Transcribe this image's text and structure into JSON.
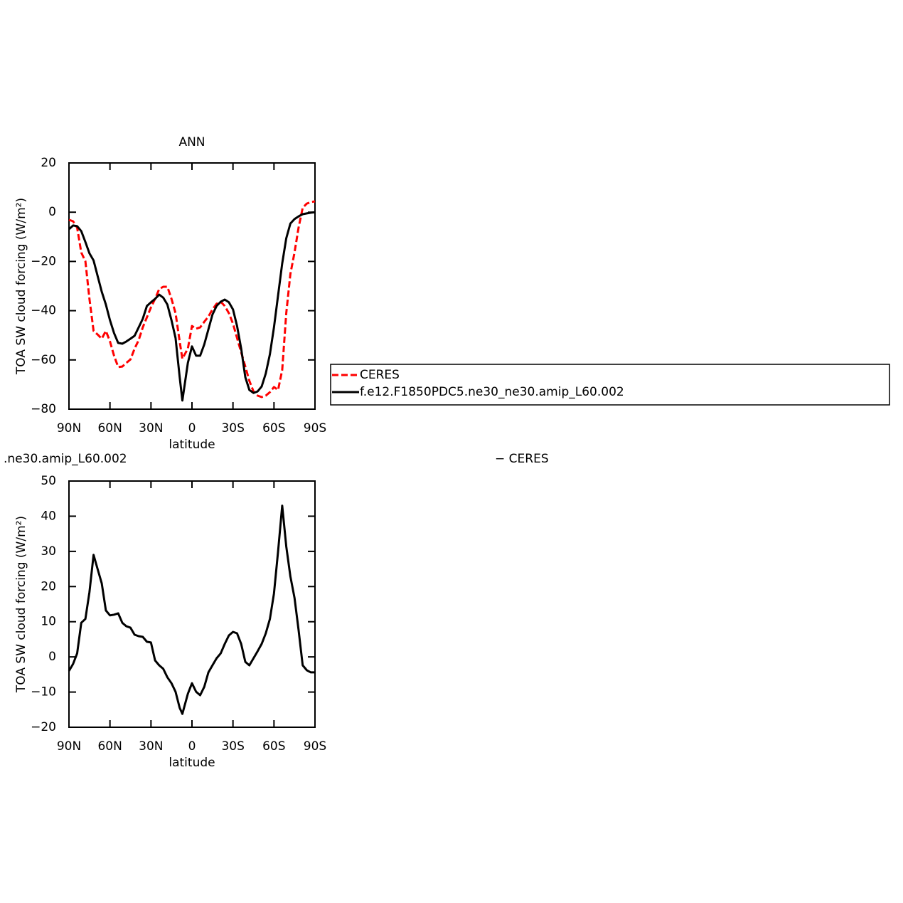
{
  "chart_data": [
    {
      "type": "line",
      "title": "ANN",
      "xlabel": "latitude",
      "ylabel": "TOA SW cloud forcing (W/m²)",
      "x": [
        90,
        87,
        84,
        81,
        78,
        75,
        72,
        69,
        66,
        63,
        60,
        57,
        54,
        51,
        48,
        45,
        42,
        39,
        36,
        33,
        30,
        27,
        24,
        21,
        18,
        15,
        12,
        9,
        7,
        3,
        0,
        -3,
        -6,
        -9,
        -12,
        -15,
        -18,
        -21,
        -24,
        -27,
        -30,
        -33,
        -36,
        -39,
        -42,
        -45,
        -48,
        -51,
        -54,
        -57,
        -60,
        -63,
        -66,
        -69,
        -72,
        -75,
        -78,
        -81,
        -84,
        -87,
        -90
      ],
      "series": [
        {
          "name": "CERES",
          "color": "#ff0000",
          "dashed": true,
          "values": [
            -3.1,
            -3.7,
            -6.3,
            -16.4,
            -19.9,
            -35.2,
            -48.2,
            -49.7,
            -51.4,
            -48.2,
            -52.5,
            -58.3,
            -62.9,
            -62.7,
            -61.2,
            -59.8,
            -55.4,
            -52.0,
            -46.8,
            -42.7,
            -38.7,
            -35.2,
            -31.2,
            -30.3,
            -30.3,
            -35.2,
            -41.0,
            -52.5,
            -59.5,
            -55.4,
            -46.2,
            -47.3,
            -46.8,
            -44.5,
            -42.4,
            -39.5,
            -37.2,
            -36.4,
            -38.1,
            -41.0,
            -45.3,
            -51.1,
            -56.9,
            -62.7,
            -68.5,
            -72.8,
            -74.5,
            -75.1,
            -74.5,
            -73.1,
            -71.0,
            -72.2,
            -64.1,
            -41.0,
            -25.1,
            -16.4,
            -6.3,
            1.8,
            3.5,
            4.1,
            4.4
          ]
        },
        {
          "name": "f.e12.F1850PDC5.ne30_ne30.amip_L60.002",
          "color": "#000000",
          "dashed": false,
          "values": [
            -6.9,
            -5.4,
            -5.7,
            -7.7,
            -12.1,
            -16.7,
            -19.6,
            -26.0,
            -32.3,
            -37.5,
            -43.9,
            -49.1,
            -53.1,
            -53.4,
            -52.5,
            -51.4,
            -50.2,
            -46.8,
            -43.3,
            -38.1,
            -36.6,
            -35.2,
            -33.5,
            -34.7,
            -37.5,
            -43.9,
            -51.1,
            -67.0,
            -76.5,
            -61.2,
            -54.5,
            -58.3,
            -58.3,
            -53.7,
            -47.6,
            -41.6,
            -38.1,
            -36.4,
            -35.5,
            -36.6,
            -39.5,
            -46.2,
            -55.4,
            -67.0,
            -72.2,
            -73.4,
            -72.8,
            -70.8,
            -65.5,
            -57.7,
            -46.8,
            -33.8,
            -20.8,
            -10.6,
            -4.6,
            -2.8,
            -1.7,
            -0.8,
            -0.5,
            -0.2,
            0
          ]
        }
      ],
      "xlim": [
        90,
        -90
      ],
      "xticks": [
        {
          "value": 90,
          "label": "90N"
        },
        {
          "value": 60,
          "label": "60N"
        },
        {
          "value": 30,
          "label": "30N"
        },
        0,
        {
          "value": -30,
          "label": "30S"
        },
        {
          "value": -60,
          "label": "60S"
        },
        {
          "value": -90,
          "label": "90S"
        }
      ],
      "ylim": [
        -80,
        20
      ],
      "yticks": [
        {
          "value": -80,
          "label": "−80"
        },
        {
          "value": -60,
          "label": "−60"
        },
        {
          "value": -40,
          "label": "−40"
        },
        {
          "value": -20,
          "label": "−20"
        },
        0,
        20
      ],
      "legend": true
    },
    {
      "type": "line",
      "title_left": ".ne30.amip_L60.002",
      "title_right": "− CERES",
      "xlabel": "latitude",
      "ylabel": "TOA SW cloud forcing (W/m²)",
      "x": [
        90,
        87,
        84,
        81,
        78,
        75,
        72,
        69,
        66,
        63,
        60,
        57,
        54,
        51,
        48,
        45,
        42,
        39,
        36,
        33,
        30,
        27,
        24,
        21,
        18,
        15,
        12,
        9,
        7,
        3,
        0,
        -3,
        -6,
        -9,
        -12,
        -15,
        -18,
        -21,
        -24,
        -27,
        -30,
        -33,
        -36,
        -39,
        -42,
        -45,
        -48,
        -51,
        -54,
        -57,
        -60,
        -63,
        -66,
        -69,
        -72,
        -75,
        -78,
        -81,
        -84,
        -87,
        -90
      ],
      "series": [
        {
          "color": "#000000",
          "dashed": false,
          "values": [
            -4.0,
            -2.0,
            1.0,
            9.7,
            10.8,
            18.4,
            29.0,
            24.9,
            20.9,
            13.2,
            11.8,
            12.0,
            12.4,
            9.7,
            8.7,
            8.3,
            6.3,
            5.9,
            5.7,
            4.3,
            4.1,
            -1.0,
            -2.4,
            -3.4,
            -5.8,
            -7.5,
            -9.9,
            -14.5,
            -16.2,
            -10.5,
            -7.5,
            -9.9,
            -10.9,
            -8.5,
            -4.4,
            -2.4,
            -0.4,
            1.0,
            3.7,
            6.1,
            7.1,
            6.7,
            3.7,
            -1.4,
            -2.4,
            -0.4,
            1.6,
            3.7,
            6.7,
            10.8,
            18.0,
            30.0,
            43.0,
            31.4,
            22.9,
            16.8,
            7.7,
            -2.4,
            -3.8,
            -4.4,
            -4.4
          ]
        }
      ],
      "xlim": [
        90,
        -90
      ],
      "xticks": [
        {
          "value": 90,
          "label": "90N"
        },
        {
          "value": 60,
          "label": "60N"
        },
        {
          "value": 30,
          "label": "30N"
        },
        0,
        {
          "value": -30,
          "label": "30S"
        },
        {
          "value": -60,
          "label": "60S"
        },
        {
          "value": -90,
          "label": "90S"
        }
      ],
      "ylim": [
        -20,
        50
      ],
      "yticks": [
        {
          "value": -20,
          "label": "−20"
        },
        {
          "value": -10,
          "label": "−10"
        },
        0,
        10,
        20,
        30,
        40,
        50
      ],
      "legend": false
    }
  ]
}
